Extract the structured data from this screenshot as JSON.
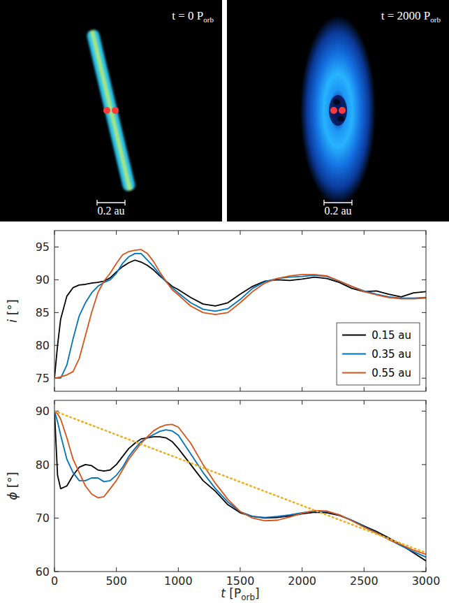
{
  "panels": [
    {
      "label": "t = 0 P",
      "label_sub": "orb",
      "scale_label": "0.2 au"
    },
    {
      "label": "t = 2000 P",
      "label_sub": "orb",
      "scale_label": "0.2 au"
    }
  ],
  "chart_data": [
    {
      "type": "line",
      "ylabel": "i [°]",
      "x": [
        0,
        25,
        50,
        100,
        150,
        200,
        250,
        300,
        350,
        400,
        450,
        500,
        550,
        600,
        650,
        700,
        750,
        800,
        850,
        900,
        950,
        1000,
        1100,
        1200,
        1300,
        1400,
        1500,
        1600,
        1700,
        1800,
        1900,
        2000,
        2100,
        2200,
        2300,
        2400,
        2500,
        2600,
        2700,
        2800,
        2900,
        3000
      ],
      "xlim": [
        0,
        3000
      ],
      "xticks": [
        0,
        500,
        1000,
        1500,
        2000,
        2500,
        3000
      ],
      "ylim": [
        73,
        97.5
      ],
      "yticks": [
        75,
        80,
        85,
        90,
        95
      ],
      "grid": false,
      "legend": "lower right",
      "tick_labels": "y",
      "series": [
        {
          "name": "0.15 au",
          "color": "#000000",
          "line_style": "solid",
          "values": [
            75,
            80,
            84,
            87.5,
            88.8,
            89.2,
            89.3,
            89.5,
            89.6,
            89.8,
            90.3,
            91.2,
            92,
            92.6,
            93,
            92.7,
            92.2,
            91.5,
            90.6,
            89.8,
            89,
            88.5,
            87.3,
            86.3,
            86,
            86.5,
            87.8,
            89,
            89.8,
            90,
            89.9,
            90.1,
            90.4,
            90.2,
            89.6,
            88.7,
            88.2,
            88.3,
            87.8,
            87.4,
            88,
            88.2
          ]
        },
        {
          "name": "0.35 au",
          "color": "#0072bd",
          "line_style": "solid",
          "values": [
            75,
            75,
            75,
            77,
            81,
            84.5,
            86.5,
            88,
            89,
            89.6,
            90,
            91,
            92.5,
            93.5,
            94,
            94,
            93,
            92,
            90.8,
            89.7,
            88.8,
            88,
            86.5,
            85.5,
            85.2,
            85.6,
            87,
            88.7,
            89.7,
            90.2,
            90.4,
            90.5,
            90.7,
            90.5,
            89.8,
            89,
            88.3,
            87.8,
            87.4,
            87.2,
            87.2,
            87.3
          ]
        },
        {
          "name": "0.55 au",
          "color": "#d95319",
          "line_style": "solid",
          "values": [
            75,
            75.1,
            75.2,
            75.5,
            76,
            78,
            81.5,
            85,
            88,
            89.8,
            91,
            92.5,
            93.8,
            94.3,
            94.5,
            94.6,
            94,
            92.8,
            91.2,
            89.8,
            88.5,
            87.7,
            86,
            85,
            84.7,
            85,
            86.5,
            88.2,
            89.5,
            90.2,
            90.6,
            90.8,
            90.8,
            90.6,
            89.8,
            89,
            88.2,
            87.7,
            87.3,
            87.1,
            87.1,
            87.2
          ]
        }
      ]
    },
    {
      "type": "line",
      "ylabel": "ϕ [°]",
      "xlabel": {
        "text": "t [P",
        "sub": "orb",
        "end": "]"
      },
      "x": [
        0,
        25,
        50,
        100,
        150,
        200,
        250,
        300,
        350,
        400,
        450,
        500,
        550,
        600,
        650,
        700,
        750,
        800,
        850,
        900,
        950,
        1000,
        1100,
        1200,
        1300,
        1400,
        1500,
        1600,
        1700,
        1800,
        1900,
        2000,
        2100,
        2200,
        2300,
        2400,
        2500,
        2600,
        2700,
        2800,
        2900,
        3000
      ],
      "xlim": [
        0,
        3000
      ],
      "xticks": [
        0,
        500,
        1000,
        1500,
        2000,
        2500,
        3000
      ],
      "ylim": [
        60,
        92
      ],
      "yticks": [
        60,
        70,
        80,
        90
      ],
      "grid": false,
      "series": [
        {
          "name": "0.15 au",
          "color": "#000000",
          "line_style": "solid",
          "values": [
            90,
            78,
            75.5,
            76,
            78,
            79.5,
            80,
            79.8,
            79,
            78.8,
            79,
            80,
            81.5,
            83,
            84,
            84.8,
            85,
            85.2,
            85.2,
            85,
            84.3,
            83,
            80,
            77,
            75,
            72.5,
            71,
            70.3,
            70,
            70.1,
            70.4,
            70.8,
            71.1,
            71,
            70.5,
            69.6,
            68.5,
            67.5,
            66.3,
            65,
            63.5,
            62
          ]
        },
        {
          "name": "0.35 au",
          "color": "#0072bd",
          "line_style": "solid",
          "values": [
            90,
            88,
            85.5,
            81,
            78.5,
            77,
            77,
            77.5,
            77.5,
            76.8,
            77,
            78,
            79.5,
            81.5,
            83,
            84.3,
            85,
            85.6,
            86.2,
            86.5,
            86.3,
            85.5,
            82,
            78.5,
            75.5,
            73,
            71.2,
            70.3,
            70.1,
            70.3,
            70.6,
            71,
            71.3,
            71.2,
            70.6,
            69.6,
            68.4,
            67.3,
            66,
            64.8,
            63.7,
            62.7
          ]
        },
        {
          "name": "0.55 au",
          "color": "#d95319",
          "line_style": "solid",
          "values": [
            90,
            89.5,
            88.5,
            85,
            81,
            78.5,
            76,
            74.5,
            73.8,
            74,
            75.5,
            77,
            79,
            81,
            82.5,
            84,
            85.2,
            86.3,
            87,
            87.4,
            87.5,
            87,
            84,
            80,
            76.5,
            73.5,
            71.2,
            70,
            69.5,
            69.6,
            70.2,
            70.9,
            71.4,
            71.3,
            70.6,
            69.5,
            68.3,
            67.2,
            66,
            65,
            64,
            63.2
          ]
        },
        {
          "color": "#edb120",
          "line_style": "dotted",
          "x": [
            0,
            3000
          ],
          "values": [
            90,
            63.5
          ]
        }
      ]
    }
  ]
}
